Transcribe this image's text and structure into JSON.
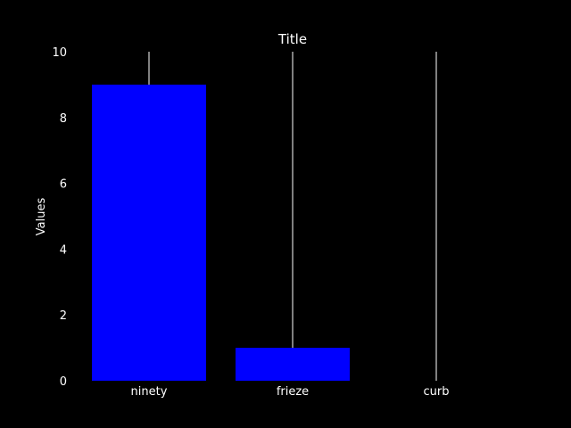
{
  "chart_data": {
    "type": "bar",
    "title": "Title",
    "xlabel": "",
    "ylabel": "Values",
    "categories": [
      "ninety",
      "frieze",
      "curb"
    ],
    "values": [
      9,
      1,
      0
    ],
    "ylim": [
      0,
      10
    ],
    "yticks": [
      "0",
      "2",
      "4",
      "6",
      "8",
      "10"
    ],
    "grid": false,
    "colors": {
      "background": "#000000",
      "bar": "#0000ff",
      "text": "#ffffff",
      "guide_line": "#ffffff"
    }
  }
}
